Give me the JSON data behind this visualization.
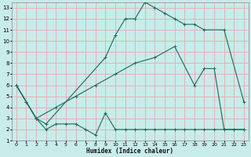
{
  "xlabel": "Humidex (Indice chaleur)",
  "background_color": "#c8ecea",
  "grid_color": "#e8aaaa",
  "line_color": "#1a6b5a",
  "xlim": [
    -0.5,
    23.5
  ],
  "ylim": [
    1,
    13.5
  ],
  "xtick_labels": [
    "0",
    "1",
    "2",
    "3",
    "4",
    "5",
    "6",
    "7",
    "8",
    "9",
    "10",
    "11",
    "12",
    "13",
    "14",
    "15",
    "16",
    "17",
    "18",
    "19",
    "20",
    "21",
    "22",
    "23"
  ],
  "xtick_vals": [
    0,
    1,
    2,
    3,
    4,
    5,
    6,
    7,
    8,
    9,
    10,
    11,
    12,
    13,
    14,
    15,
    16,
    17,
    18,
    19,
    20,
    21,
    22,
    23
  ],
  "ytick_vals": [
    1,
    2,
    3,
    4,
    5,
    6,
    7,
    8,
    9,
    10,
    11,
    12,
    13
  ],
  "line1_x": [
    0,
    1,
    2,
    3,
    9,
    10,
    11,
    12,
    13,
    14,
    15,
    16,
    17,
    18,
    19,
    21,
    23
  ],
  "line1_y": [
    6,
    4.5,
    3,
    2.5,
    8.5,
    10.5,
    12,
    12,
    13.5,
    13,
    12.5,
    12,
    11.5,
    11.5,
    11,
    11,
    4.5
  ],
  "line2_x": [
    0,
    2,
    4,
    6,
    8,
    10,
    12,
    14,
    16,
    18,
    19,
    20,
    21,
    22,
    23
  ],
  "line2_y": [
    6,
    3,
    4,
    5,
    6,
    7,
    8,
    8.5,
    9.5,
    6,
    7.5,
    7.5,
    2,
    2,
    2
  ],
  "line3_x": [
    0,
    1,
    2,
    3,
    4,
    5,
    6,
    7,
    8,
    9,
    10,
    11,
    12,
    13,
    14,
    15,
    16,
    17,
    18,
    19,
    20,
    21,
    22,
    23
  ],
  "line3_y": [
    6,
    4.5,
    3,
    2,
    2.5,
    2.5,
    2.5,
    2,
    1.5,
    3.5,
    2,
    2,
    2,
    2,
    2,
    2,
    2,
    2,
    2,
    2,
    2,
    2,
    2,
    2
  ]
}
